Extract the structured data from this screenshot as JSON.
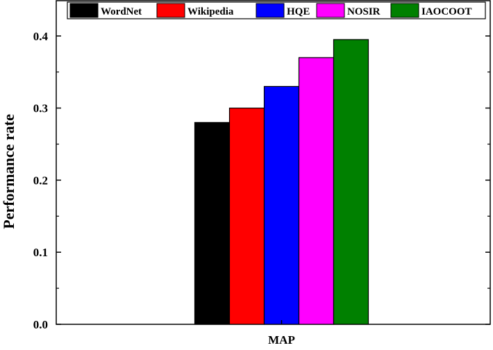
{
  "chart_data": {
    "type": "bar",
    "categories": [
      "MAP"
    ],
    "series": [
      {
        "name": "WordNet",
        "values": [
          0.28
        ],
        "color": "#000000"
      },
      {
        "name": "Wikipedia",
        "values": [
          0.3
        ],
        "color": "#ff0000"
      },
      {
        "name": "HQE",
        "values": [
          0.33
        ],
        "color": "#0000ff"
      },
      {
        "name": "NOSIR",
        "values": [
          0.37
        ],
        "color": "#ff00ff"
      },
      {
        "name": "IAOCOOT",
        "values": [
          0.395
        ],
        "color": "#008000"
      }
    ],
    "ylabel": "Performance rate",
    "xlabel": "",
    "ylim": [
      0.0,
      0.42
    ],
    "yticks": [
      "0.0",
      "0.1",
      "0.2",
      "0.3",
      "0.4"
    ],
    "legend": "top",
    "grid": false
  }
}
